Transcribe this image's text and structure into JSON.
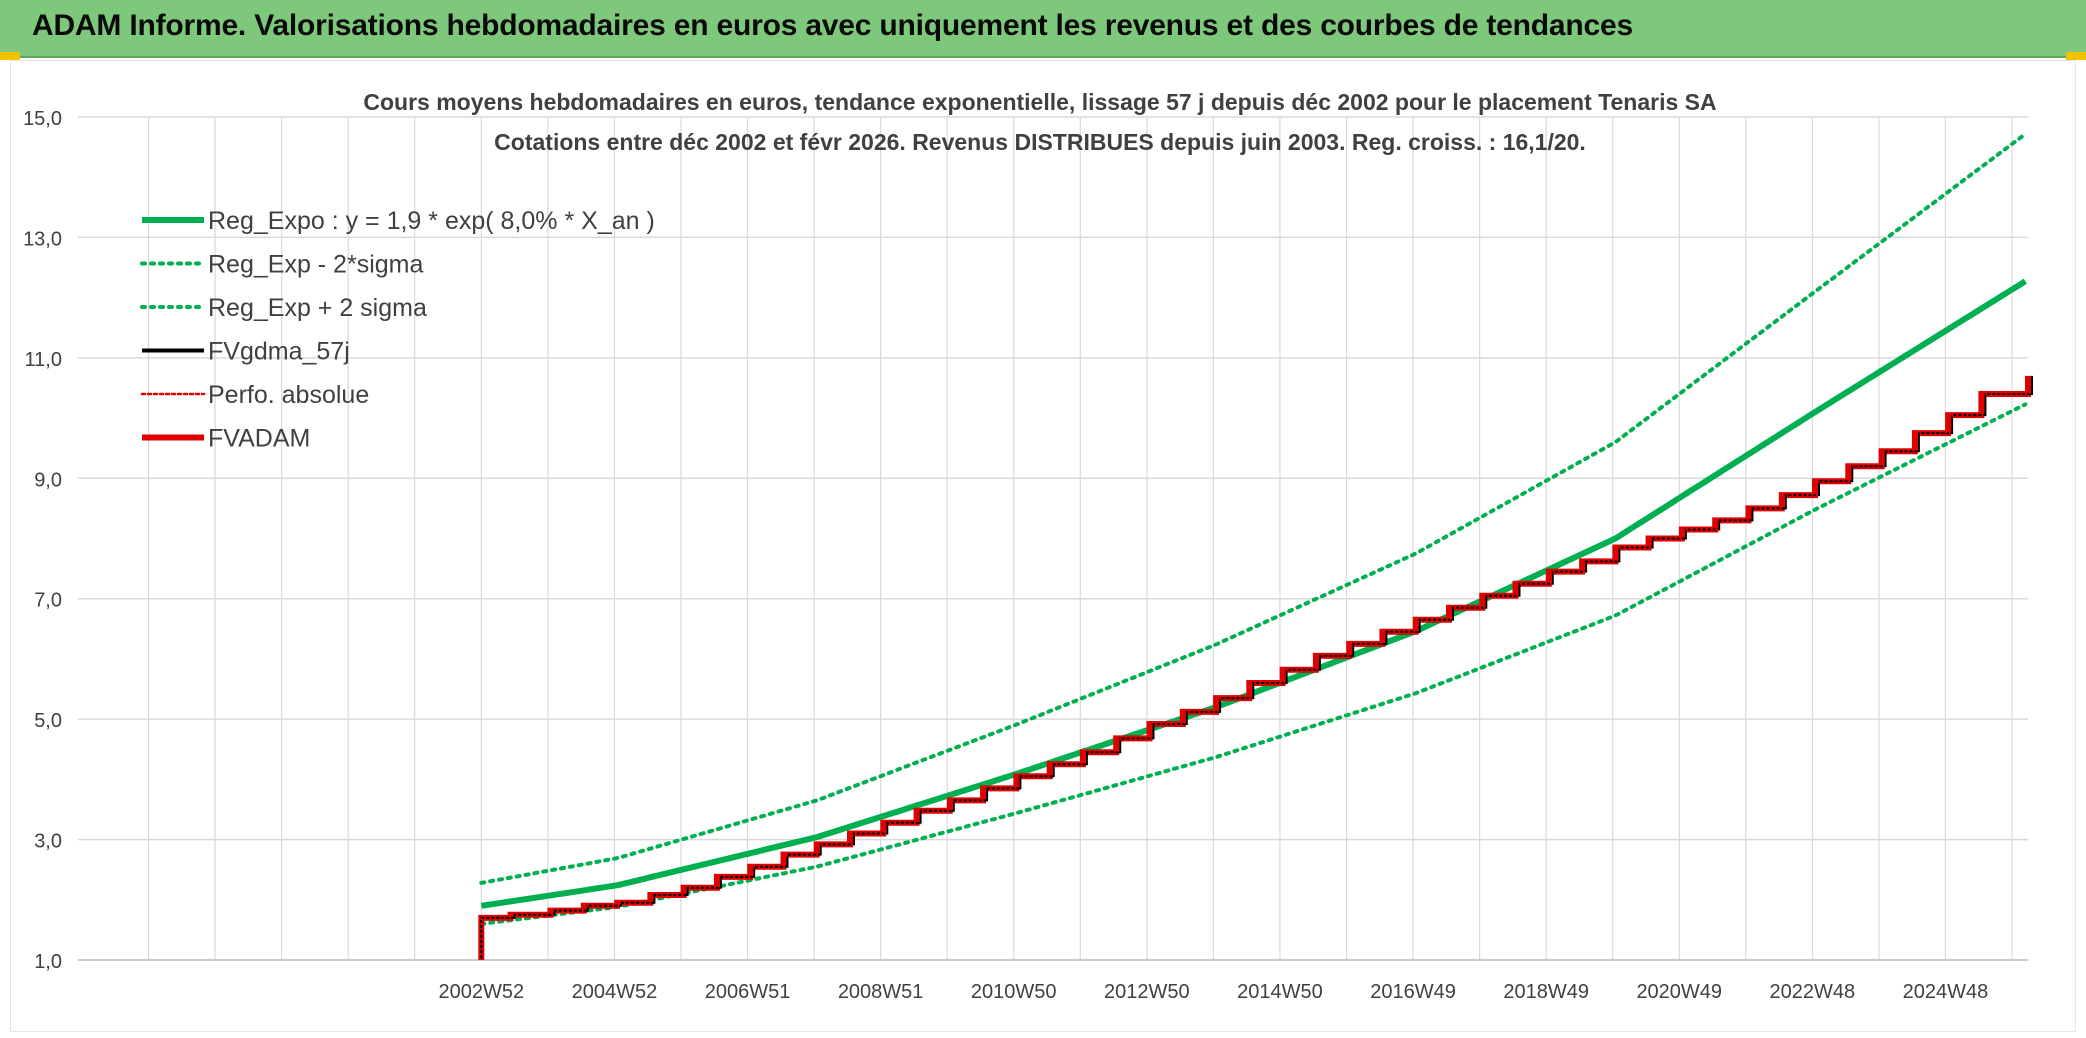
{
  "header": {
    "title": "ADAM Informe. Valorisations hebdomadaires en euros avec uniquement les revenus et des courbes de tendances"
  },
  "colors": {
    "header_bg": "#7ec87b",
    "green": "#00b050",
    "red": "#e00000",
    "black": "#000000",
    "grid": "#d9d9d9",
    "text": "#404040"
  },
  "chart_data": {
    "type": "line",
    "title": "Cours moyens hebdomadaires en euros, tendance exponentielle, lissage 57 j depuis déc 2002 pour le placement Tenaris SA",
    "subtitle": "Cotations entre déc 2002 et févr 2026. Revenus DISTRIBUES depuis juin 2003. Reg. croiss. : 16,1/20.",
    "xlabel": "",
    "ylabel": "",
    "ylim": [
      1.0,
      15.0
    ],
    "yticks": [
      "1,0",
      "3,0",
      "5,0",
      "7,0",
      "9,0",
      "11,0",
      "13,0",
      "15,0"
    ],
    "yticks_values": [
      1,
      3,
      5,
      7,
      9,
      11,
      13,
      15
    ],
    "x_range_years": [
      1996.9,
      2026.2
    ],
    "xticks": [
      "2002W52",
      "2004W52",
      "2006W51",
      "2008W51",
      "2010W50",
      "2012W50",
      "2014W50",
      "2016W49",
      "2018W49",
      "2020W49",
      "2022W48",
      "2024W48"
    ],
    "xticks_years": [
      2002.96,
      2004.96,
      2006.96,
      2008.96,
      2010.96,
      2012.96,
      2014.96,
      2016.96,
      2018.96,
      2020.96,
      2022.96,
      2024.96
    ],
    "grid": true,
    "legend_position": "top-left",
    "regression": {
      "a": 1.9,
      "rate": 0.08,
      "start_year": 2002.96,
      "end_year": 2026.2,
      "sigma_factor_low": 0.84,
      "sigma_factor_high": 1.2
    },
    "series": [
      {
        "name": "Reg_Expo : y = 1,9 * exp( 8,0% *  X_an )",
        "style": "solid-thick",
        "color": "#00b050",
        "x": [
          2002.96,
          2005,
          2008,
          2011,
          2014,
          2017,
          2020,
          2023,
          2026.2
        ],
        "values": [
          1.9,
          2.24,
          3.04,
          4.09,
          5.2,
          6.46,
          8.0,
          10.1,
          12.3
        ]
      },
      {
        "name": "Reg_Exp - 2*sigma",
        "style": "dotted",
        "color": "#00b050",
        "x": [
          2002.96,
          2005,
          2008,
          2011,
          2014,
          2017,
          2020,
          2023,
          2026.2
        ],
        "values": [
          1.6,
          1.88,
          2.55,
          3.44,
          4.37,
          5.43,
          6.72,
          8.48,
          10.25
        ]
      },
      {
        "name": "Reg_Exp + 2 sigma",
        "style": "dotted",
        "color": "#00b050",
        "x": [
          2002.96,
          2005,
          2008,
          2011,
          2014,
          2017,
          2020,
          2023,
          2026.2
        ],
        "values": [
          2.28,
          2.69,
          3.65,
          4.91,
          6.24,
          7.75,
          9.6,
          12.1,
          14.75
        ]
      },
      {
        "name": "FVgdma_57j",
        "style": "solid",
        "color": "#000000",
        "x": [
          2002.96,
          2026.2
        ],
        "values": [
          1.7,
          10.7
        ]
      },
      {
        "name": "Perfo. absolue",
        "style": "dotted",
        "color": "#e00000",
        "x": [
          2002.96,
          2026.2
        ],
        "values": [
          1.7,
          10.7
        ]
      },
      {
        "name": "FVADAM",
        "style": "solid-thick-steps",
        "color": "#e00000",
        "step_years": [
          2002.96,
          2003.4,
          2004.0,
          2004.5,
          2005.0,
          2005.5,
          2006.0,
          2006.5,
          2007.0,
          2007.5,
          2008.0,
          2008.5,
          2009.0,
          2009.5,
          2010.0,
          2010.5,
          2011.0,
          2011.5,
          2012.0,
          2012.5,
          2013.0,
          2013.5,
          2014.0,
          2014.5,
          2015.0,
          2015.5,
          2016.0,
          2016.5,
          2017.0,
          2017.5,
          2018.0,
          2018.5,
          2019.0,
          2019.5,
          2020.0,
          2020.5,
          2021.0,
          2021.5,
          2022.0,
          2022.5,
          2023.0,
          2023.5,
          2024.0,
          2024.5,
          2025.0,
          2025.5,
          2026.2
        ],
        "values": [
          1.7,
          1.75,
          1.82,
          1.9,
          1.95,
          2.08,
          2.2,
          2.38,
          2.55,
          2.75,
          2.92,
          3.1,
          3.28,
          3.48,
          3.65,
          3.85,
          4.05,
          4.25,
          4.45,
          4.68,
          4.92,
          5.12,
          5.35,
          5.6,
          5.82,
          6.05,
          6.25,
          6.45,
          6.65,
          6.85,
          7.05,
          7.25,
          7.45,
          7.62,
          7.85,
          8.0,
          8.15,
          8.3,
          8.5,
          8.72,
          8.95,
          9.2,
          9.45,
          9.75,
          10.05,
          10.4,
          10.7
        ]
      }
    ]
  }
}
